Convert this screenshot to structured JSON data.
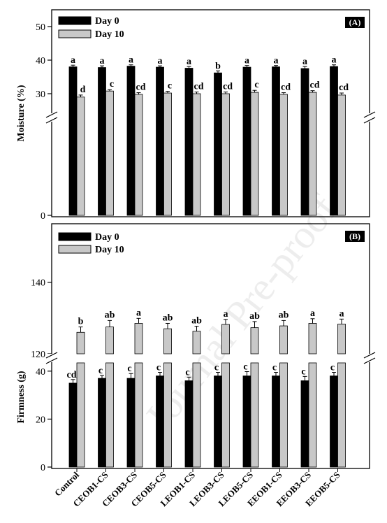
{
  "watermark": "Journal Pre-proof",
  "legend": [
    "Day 0",
    "Day 10"
  ],
  "colors": {
    "day0": "#000000",
    "day10": "#c8c8c8",
    "axis": "#000000"
  },
  "chart_data": [
    {
      "type": "bar",
      "panel_label": "(A)",
      "ylabel": "Moisture (%)",
      "broken_axis": {
        "lower_ticks": [
          0
        ],
        "upper_range": [
          25,
          55
        ],
        "upper_ticks": [
          30,
          40,
          50
        ]
      },
      "categories": [
        "Control",
        "CEOB1-CS",
        "CEOB3-CS",
        "CEOB5-CS",
        "LEOB1-CS",
        "LEOB3-CS",
        "LEOB5-CS",
        "EEOB1-CS",
        "EEOB3-CS",
        "EEOB5-CS"
      ],
      "series": [
        {
          "name": "Day 0",
          "values": [
            38.0,
            37.8,
            38.2,
            37.9,
            37.6,
            36.2,
            37.9,
            38.0,
            37.5,
            38.1
          ],
          "errors": [
            0.5,
            0.5,
            0.4,
            0.4,
            0.5,
            0.6,
            0.5,
            0.4,
            0.6,
            0.5
          ],
          "letters": [
            "a",
            "a",
            "a",
            "a",
            "a",
            "b",
            "a",
            "a",
            "a",
            "a"
          ]
        },
        {
          "name": "Day 10",
          "values": [
            29.0,
            30.8,
            29.8,
            30.2,
            30.0,
            30.0,
            30.4,
            29.8,
            30.4,
            29.6
          ],
          "errors": [
            0.6,
            0.4,
            0.5,
            0.5,
            0.5,
            0.5,
            0.6,
            0.5,
            0.5,
            0.6
          ],
          "letters": [
            "d",
            "c",
            "cd",
            "c",
            "cd",
            "cd",
            "c",
            "cd",
            "cd",
            "cd"
          ]
        }
      ]
    },
    {
      "type": "bar",
      "panel_label": "(B)",
      "ylabel": "Firmness (g)",
      "broken_axis": {
        "lower_range": [
          0,
          43
        ],
        "lower_ticks": [
          0,
          20,
          40
        ],
        "upper_range": [
          120,
          143
        ],
        "upper_ticks": [
          120,
          140
        ]
      },
      "categories": [
        "Control",
        "CEOB1-CS",
        "CEOB3-CS",
        "CEOB5-CS",
        "LEOB1-CS",
        "LEOB3-CS",
        "LEOB5-CS",
        "EEOB1-CS",
        "EEOB3-CS",
        "EEOB5-CS"
      ],
      "series": [
        {
          "name": "Day 0",
          "values": [
            35.0,
            37.0,
            37.0,
            38.0,
            36.0,
            38.0,
            38.0,
            38.0,
            36.0,
            38.0
          ],
          "errors": [
            1.5,
            1.2,
            2.0,
            1.5,
            1.5,
            1.5,
            1.8,
            1.5,
            1.8,
            1.5
          ],
          "letters": [
            "cd",
            "c",
            "c",
            "c",
            "c",
            "c",
            "c",
            "c",
            "c",
            "c"
          ]
        },
        {
          "name": "Day 10",
          "values": [
            126.0,
            127.5,
            128.5,
            127.0,
            126.3,
            128.2,
            127.3,
            127.8,
            128.5,
            128.3
          ],
          "errors": [
            1.5,
            1.8,
            1.4,
            1.5,
            1.4,
            1.4,
            1.7,
            1.5,
            1.3,
            1.4
          ],
          "letters": [
            "b",
            "ab",
            "a",
            "ab",
            "ab",
            "a",
            "ab",
            "ab",
            "a",
            "a"
          ]
        }
      ]
    }
  ]
}
